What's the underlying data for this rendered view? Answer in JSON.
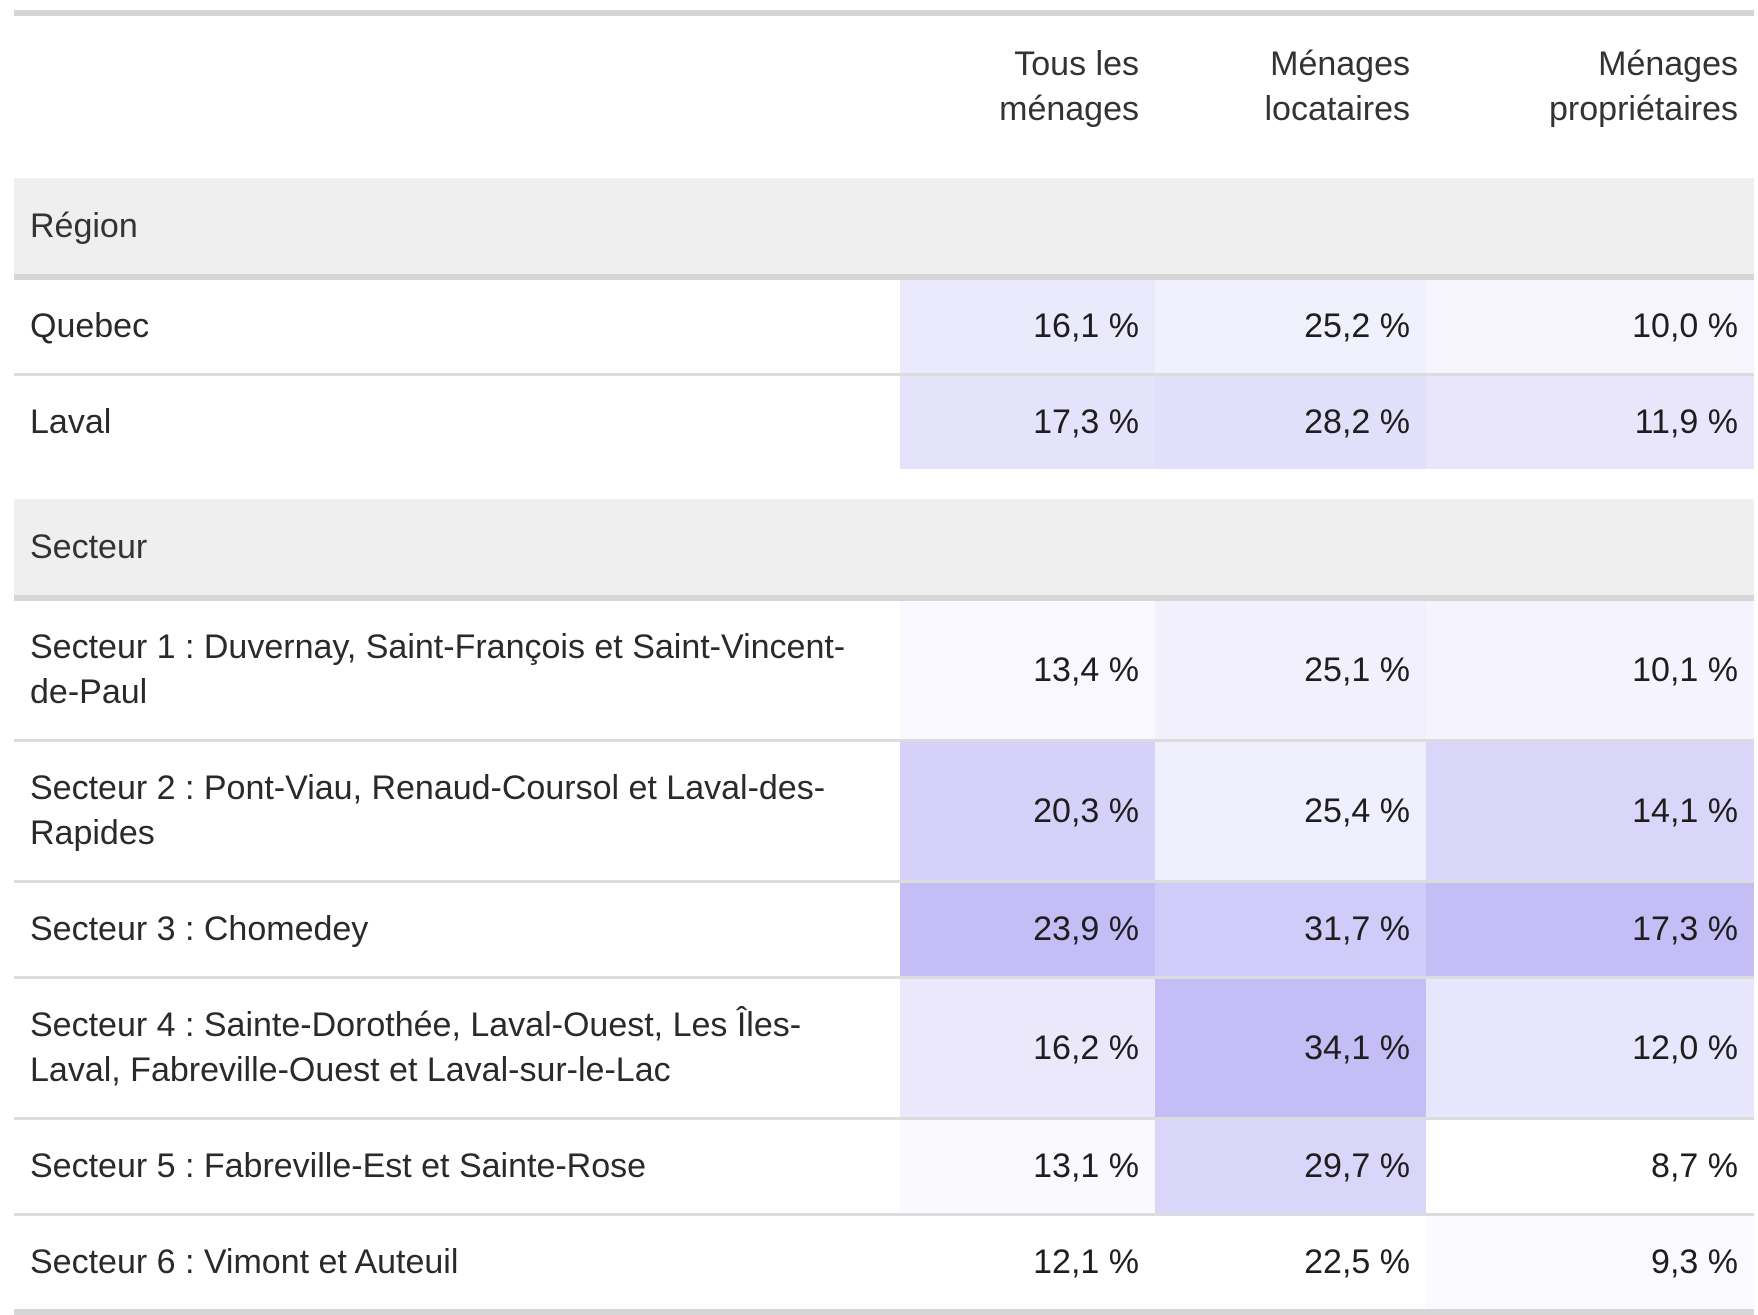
{
  "chart_data": {
    "type": "table",
    "columns": [
      "",
      "Tous les ménages",
      "Ménages locataires",
      "Ménages propriétaires"
    ],
    "groups": [
      {
        "label": "Région",
        "rows": [
          {
            "label": "Quebec",
            "values": [
              "16,1 %",
              "25,2 %",
              "10,0 %"
            ],
            "numeric": [
              16.1,
              25.2,
              10.0
            ]
          },
          {
            "label": "Laval",
            "values": [
              "17,3 %",
              "28,2 %",
              "11,9 %"
            ],
            "numeric": [
              17.3,
              28.2,
              11.9
            ]
          }
        ]
      },
      {
        "label": "Secteur",
        "rows": [
          {
            "label": "Secteur 1 : Duvernay, Saint-François et Saint-Vincent-de-Paul",
            "values": [
              "13,4 %",
              "25,1 %",
              "10,1 %"
            ],
            "numeric": [
              13.4,
              25.1,
              10.1
            ]
          },
          {
            "label": "Secteur 2 : Pont-Viau, Renaud-Coursol et Laval-des-Rapides",
            "values": [
              "20,3 %",
              "25,4 %",
              "14,1 %"
            ],
            "numeric": [
              20.3,
              25.4,
              14.1
            ]
          },
          {
            "label": "Secteur 3 : Chomedey",
            "values": [
              "23,9 %",
              "31,7 %",
              "17,3 %"
            ],
            "numeric": [
              23.9,
              31.7,
              17.3
            ]
          },
          {
            "label": "Secteur 4 : Sainte-Dorothée, Laval-Ouest, Les Îles-Laval, Fabreville-Ouest et Laval-sur-le-Lac",
            "values": [
              "16,2 %",
              "34,1 %",
              "12,0 %"
            ],
            "numeric": [
              16.2,
              34.1,
              12.0
            ]
          },
          {
            "label": "Secteur 5 : Fabreville-Est et Sainte-Rose",
            "values": [
              "13,1 %",
              "29,7 %",
              "8,7 %"
            ],
            "numeric": [
              13.1,
              29.7,
              8.7
            ]
          },
          {
            "label": "Secteur 6 : Vimont et Auteuil",
            "values": [
              "12,1 %",
              "22,5 %",
              "9,3 %"
            ],
            "numeric": [
              12.1,
              22.5,
              9.3
            ]
          }
        ]
      }
    ],
    "heat_color_low": "#ffffff",
    "heat_color_high": "#c4bdf6"
  }
}
